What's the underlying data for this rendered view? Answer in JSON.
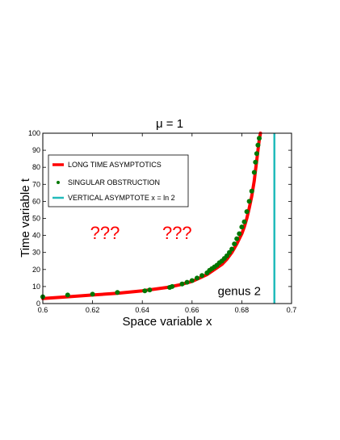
{
  "chart_data": {
    "type": "line",
    "title": "μ = 1",
    "xlabel": "Space variable x",
    "ylabel": "Time variable t",
    "xlim": [
      0.6,
      0.7
    ],
    "ylim": [
      0,
      100
    ],
    "x_ticks": [
      "0.6",
      "0.62",
      "0.64",
      "0.66",
      "0.68",
      "0.7"
    ],
    "y_ticks": [
      "0",
      "10",
      "20",
      "30",
      "40",
      "50",
      "60",
      "70",
      "80",
      "90",
      "100"
    ],
    "grid": false,
    "legend_position": "upper-left",
    "series": [
      {
        "name": "LONG TIME ASYMPTOTICS",
        "style": "line",
        "color": "#ff0000",
        "x": [
          0.6,
          0.61,
          0.62,
          0.63,
          0.64,
          0.645,
          0.65,
          0.655,
          0.66,
          0.663,
          0.666,
          0.669,
          0.672,
          0.674,
          0.676,
          0.678,
          0.68,
          0.681,
          0.682,
          0.683,
          0.684,
          0.685,
          0.6855,
          0.686,
          0.6865,
          0.687,
          0.6875
        ],
        "y": [
          3,
          4,
          5,
          6,
          7.5,
          8.5,
          9.5,
          11,
          13,
          15,
          17,
          20,
          23,
          26,
          30,
          35,
          41,
          45,
          50,
          56,
          63,
          72,
          78,
          84,
          90,
          96,
          100
        ]
      },
      {
        "name": "SINGULAR OBSTRUCTION",
        "style": "scatter",
        "color": "#007700",
        "x": [
          0.6,
          0.61,
          0.62,
          0.63,
          0.641,
          0.643,
          0.651,
          0.652,
          0.656,
          0.658,
          0.66,
          0.662,
          0.664,
          0.666,
          0.667,
          0.668,
          0.669,
          0.67,
          0.671,
          0.672,
          0.673,
          0.674,
          0.675,
          0.676,
          0.677,
          0.678,
          0.679,
          0.68,
          0.681,
          0.682,
          0.683,
          0.684,
          0.685,
          0.6855,
          0.686,
          0.6865,
          0.687
        ],
        "y": [
          4,
          5,
          5.5,
          6.5,
          7.5,
          8,
          9.5,
          10,
          11.5,
          12.5,
          13.5,
          15,
          16.5,
          18,
          19.5,
          20.5,
          21.5,
          22.5,
          24,
          25,
          26.5,
          28,
          30,
          32,
          35,
          38,
          41,
          45,
          48,
          54,
          60,
          66,
          77,
          83,
          88,
          93,
          97
        ]
      },
      {
        "name": "VERTICAL ASYMPTOTE x = ln 2",
        "style": "vline",
        "color": "#22bbbb",
        "x": [
          0.6931,
          0.6931
        ],
        "y": [
          0,
          100
        ]
      }
    ],
    "annotations": [
      {
        "text": "???",
        "x": 0.625,
        "y": 38,
        "color": "#ff0000"
      },
      {
        "text": "???",
        "x": 0.654,
        "y": 38,
        "color": "#ff0000"
      },
      {
        "text": "genus 2",
        "x": 0.679,
        "y": 5,
        "color": "#000000"
      }
    ]
  }
}
